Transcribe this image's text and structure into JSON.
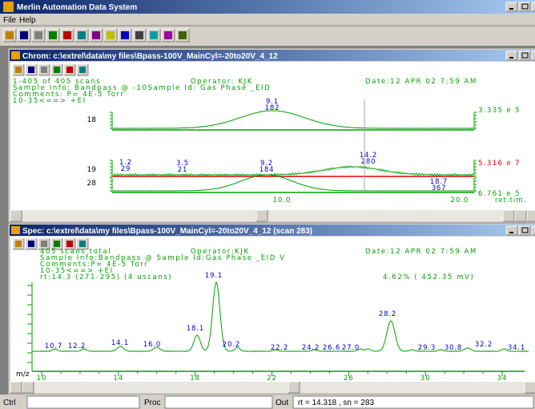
{
  "window": {
    "title": "Merlin Automation Data System"
  },
  "menu": [
    "File",
    "Help"
  ],
  "chrom": {
    "title": "Chrom: c:\\extrel\\data\\my files\\Bpass-100V_MainCyl=-20to20V_4_12",
    "header": {
      "scans": "1-405 of 405 scans",
      "operator": "Operator: KJK",
      "date": "Date:12 APR 02  7:59 AM",
      "sample": "Sample Info: Bandpass @ -10Sample Id: Gas Phase _EID",
      "comments": "Comments: P= 4E-5 Torr",
      "ionization": "10-35<==>  +EI"
    },
    "traces": [
      {
        "mass": "18",
        "scale": "3.335 e 5",
        "peaks": [
          {
            "rt": "9.1",
            "intensity": "182"
          }
        ]
      },
      {
        "mass": "19",
        "scale": "5.316 e 7",
        "peaks": [
          {
            "rt": "1.2",
            "intensity": "29"
          },
          {
            "rt": "3.5",
            "intensity": "21"
          },
          {
            "rt": "14.2",
            "intensity": "280"
          }
        ]
      },
      {
        "mass": "28",
        "scale": "6.761 e 5",
        "peaks": [
          {
            "rt": "9.2",
            "intensity": "184"
          },
          {
            "rt": "18.7",
            "intensity": "367"
          }
        ]
      }
    ],
    "x_labels": [
      "10.0",
      "20.0",
      "ret.tim."
    ]
  },
  "spec": {
    "title": "Spec: c:\\extrel\\data\\my files\\Bpass-100V_MainCyl=-20to20V_4_12 (scan 283)",
    "header": {
      "scans": "405 scans total",
      "operator": "Operator:KJK",
      "date": "Date:12 APR 02  7:59 AM",
      "sample": "Sample Info:Bandpass @ Sample Id:Gas Phase _EID  V",
      "comments": "Comments:P= 4E-5 Torr",
      "ionization": "10-35<==>  +EI",
      "rt": "rt:14.3 (271-295) (4 uscans)",
      "percent": "4.62% ( 452.35 mV)"
    },
    "peaks": [
      "10.7",
      "12.2",
      "14.1",
      "16.0",
      "18.1",
      "19.1",
      "20.2",
      "22.2",
      "24.2",
      "26.6",
      "27.0",
      "28.2",
      "29.3",
      "30.8",
      "32.2",
      "34.1"
    ],
    "x_axis_label": "m/z",
    "x_labels": [
      "10",
      "14",
      "18",
      "22",
      "26",
      "30",
      "34"
    ]
  },
  "status": {
    "ctrl": "Ctrl",
    "proc": "Proc",
    "out": "Out",
    "readout": "rt = 14.318 , sn = 283"
  }
}
